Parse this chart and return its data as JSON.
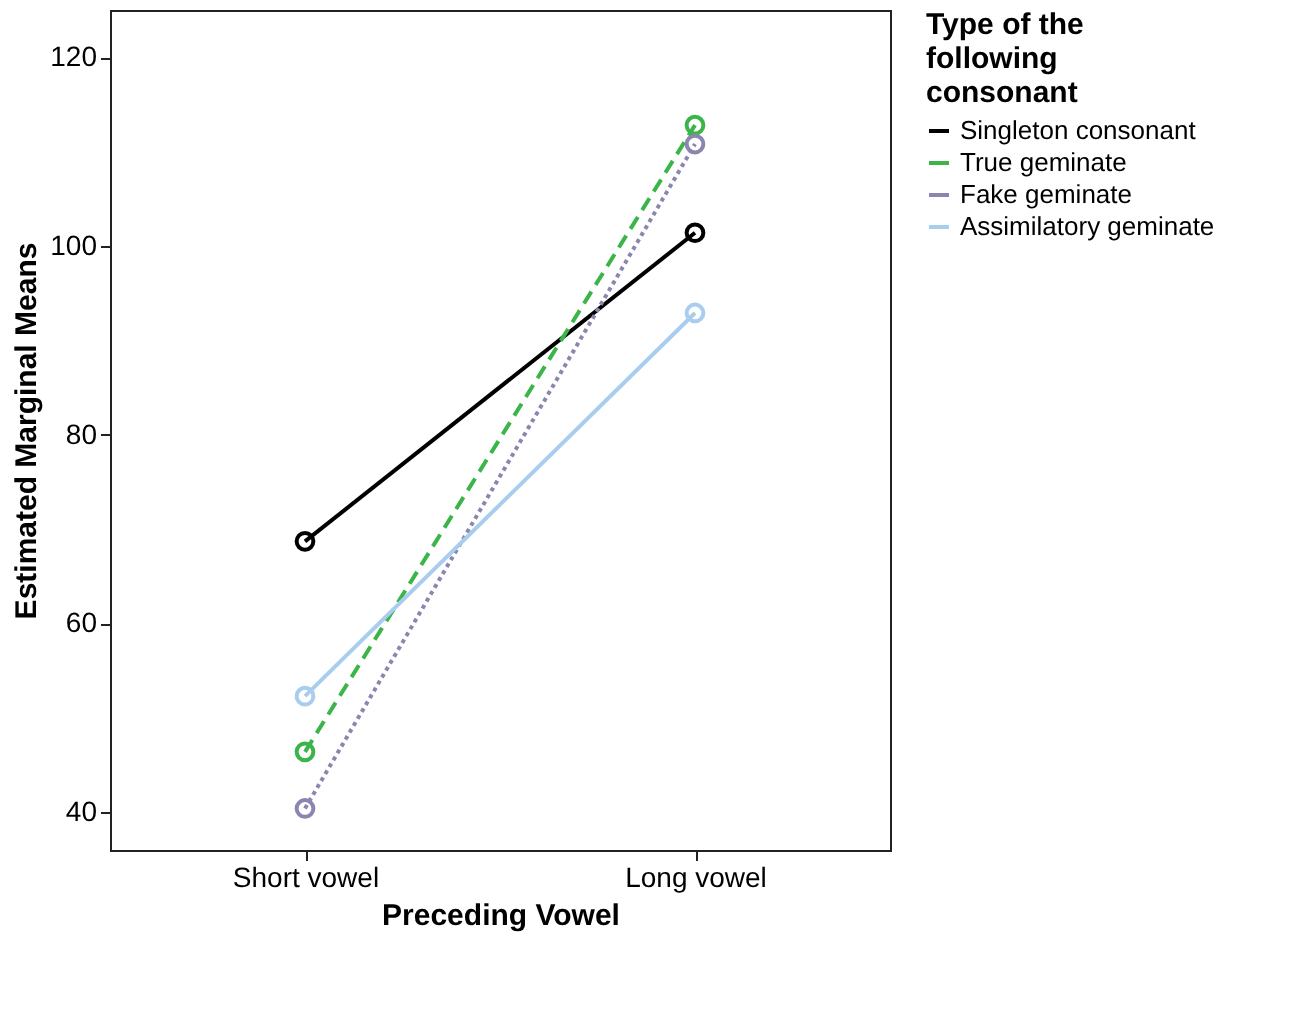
{
  "chart_data": {
    "type": "line",
    "xlabel": "Preceding Vowel",
    "ylabel": "Estimated Marginal Means",
    "legend_title": "Type of the following consonant",
    "categories": [
      "Short vowel",
      "Long vowel"
    ],
    "series": [
      {
        "name": "Singleton consonant",
        "color": "#000000",
        "line_style": "solid",
        "values": [
          68.7,
          101.4
        ]
      },
      {
        "name": "True geminate",
        "color": "#3bb54a",
        "line_style": "dashed",
        "values": [
          46.4,
          112.8
        ]
      },
      {
        "name": "Fake geminate",
        "color": "#8b86b0",
        "line_style": "dotted",
        "values": [
          40.4,
          110.8
        ]
      },
      {
        "name": "Assimilatory geminate",
        "color": "#a8cdee",
        "line_style": "solid",
        "values": [
          52.3,
          92.9
        ]
      }
    ],
    "ylim": [
      36,
      125
    ],
    "yticks": [
      40,
      60,
      80,
      100,
      120
    ],
    "grid": false,
    "legend": "right",
    "marker": "circle"
  }
}
